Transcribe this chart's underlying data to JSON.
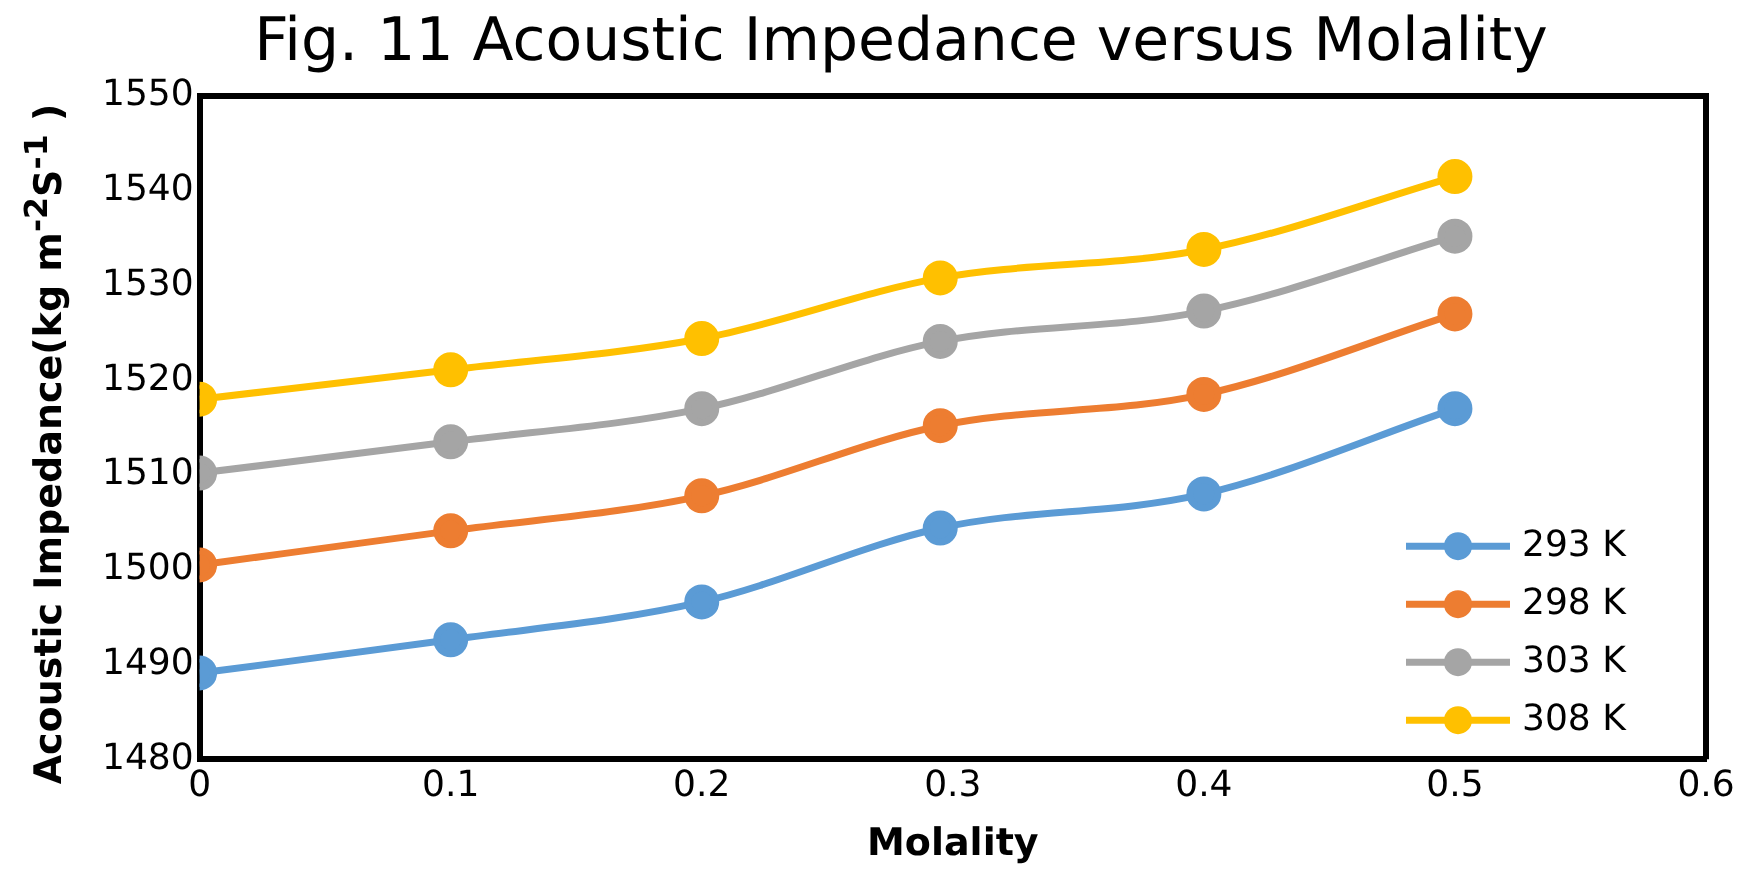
{
  "chart_data": {
    "type": "line",
    "title": "Fig. 11 Acoustic Impedance versus Molality",
    "xlabel": "Molality",
    "ylabel": "Acoustic Impedance(kg m$^{-2}$S$^{-1}$ )",
    "x": [
      0,
      0.1,
      0.2,
      0.295,
      0.4,
      0.5
    ],
    "series": [
      {
        "name": "293 K",
        "color": "#5b9bd5",
        "values": [
          1489.1,
          1492.6,
          1496.6,
          1504.4,
          1508.0,
          1517.0
        ]
      },
      {
        "name": "298 K",
        "color": "#ed7d31",
        "values": [
          1500.5,
          1504.1,
          1507.8,
          1515.2,
          1518.5,
          1527.0
        ]
      },
      {
        "name": "303 K",
        "color": "#a5a5a5",
        "values": [
          1510.2,
          1513.5,
          1517.0,
          1524.1,
          1527.3,
          1535.2
        ]
      },
      {
        "name": "308 K",
        "color": "#ffc000",
        "values": [
          1518.0,
          1521.1,
          1524.4,
          1530.8,
          1533.8,
          1541.5
        ]
      }
    ],
    "xlim": [
      0,
      0.6
    ],
    "xticks": [
      0,
      0.1,
      0.2,
      0.3,
      0.4,
      0.5,
      0.6
    ],
    "ylim": [
      1480,
      1550
    ],
    "yticks": [
      1480,
      1490,
      1500,
      1510,
      1520,
      1530,
      1540,
      1550
    ],
    "grid": false,
    "legend": "right",
    "marker": "circle",
    "line_style": "solid"
  }
}
